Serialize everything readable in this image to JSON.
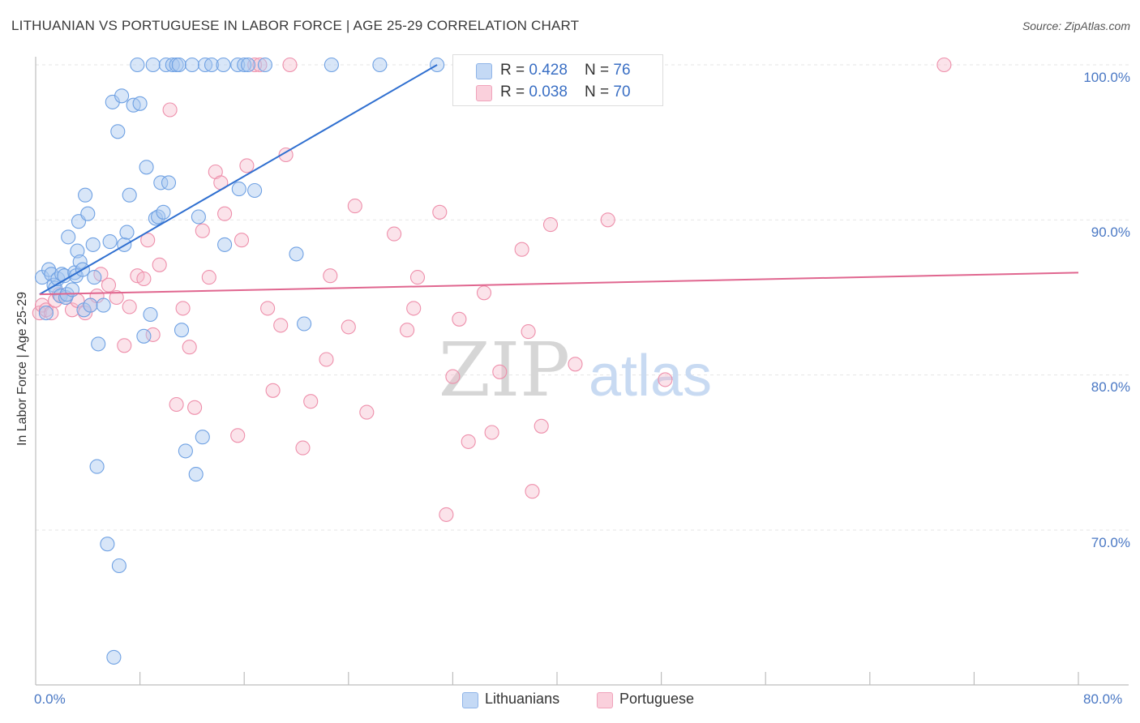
{
  "header": {
    "title": "LITHUANIAN VS PORTUGUESE IN LABOR FORCE | AGE 25-29 CORRELATION CHART",
    "source": "Source: ZipAtlas.com"
  },
  "watermark": {
    "zip": "ZIP",
    "atlas": "atlas"
  },
  "legend_top": {
    "rows": [
      {
        "r_label": "R = ",
        "r_value": "0.428",
        "n_label": "N = ",
        "n_value": "76",
        "color": "#a8c8f0"
      },
      {
        "r_label": "R = ",
        "r_value": "0.038",
        "n_label": "N = ",
        "n_value": "70",
        "color": "#f6b8cb"
      }
    ]
  },
  "legend_bottom": {
    "items": [
      {
        "label": "Lithuanians",
        "color": "#a8c8f0"
      },
      {
        "label": "Portuguese",
        "color": "#f6b8cb"
      }
    ]
  },
  "chart_data": {
    "type": "scatter",
    "title": "LITHUANIAN VS PORTUGUESE IN LABOR FORCE | AGE 25-29 CORRELATION CHART",
    "xlabel": "",
    "ylabel": "In Labor Force | Age 25-29",
    "xlim": [
      0,
      80
    ],
    "ylim": [
      61,
      102
    ],
    "x_tick_labels": [
      "0.0%",
      "80.0%"
    ],
    "y_ticks": [
      70,
      80,
      90,
      100
    ],
    "y_tick_labels": [
      "70.0%",
      "80.0%",
      "90.0%",
      "100.0%"
    ],
    "grid": true,
    "legend": "bottom-center",
    "series": [
      {
        "name": "Lithuanians",
        "color": "#6fa1e3",
        "r": 0.428,
        "n": 76,
        "trend": {
          "x": [
            0.3,
            30.8
          ],
          "y": [
            85.2,
            100.0
          ]
        },
        "points": [
          [
            0.5,
            86.3
          ],
          [
            0.8,
            84.0
          ],
          [
            1.0,
            86.8
          ],
          [
            1.2,
            86.5
          ],
          [
            1.4,
            85.8
          ],
          [
            1.5,
            85.6
          ],
          [
            1.7,
            86.2
          ],
          [
            1.9,
            85.1
          ],
          [
            2.0,
            86.5
          ],
          [
            2.2,
            86.4
          ],
          [
            2.3,
            85.0
          ],
          [
            2.4,
            85.2
          ],
          [
            2.5,
            88.9
          ],
          [
            2.8,
            85.5
          ],
          [
            3.0,
            86.6
          ],
          [
            3.1,
            86.4
          ],
          [
            3.2,
            88.0
          ],
          [
            3.3,
            89.9
          ],
          [
            3.4,
            87.3
          ],
          [
            3.6,
            86.8
          ],
          [
            3.7,
            84.2
          ],
          [
            3.8,
            91.6
          ],
          [
            4.0,
            90.4
          ],
          [
            4.2,
            84.5
          ],
          [
            4.4,
            88.4
          ],
          [
            4.5,
            86.3
          ],
          [
            4.7,
            74.1
          ],
          [
            4.8,
            82.0
          ],
          [
            5.2,
            84.5
          ],
          [
            5.5,
            69.1
          ],
          [
            5.7,
            88.6
          ],
          [
            5.9,
            97.6
          ],
          [
            6.0,
            61.8
          ],
          [
            6.3,
            95.7
          ],
          [
            6.4,
            67.7
          ],
          [
            6.6,
            98.0
          ],
          [
            6.8,
            88.4
          ],
          [
            7.0,
            89.2
          ],
          [
            7.2,
            91.6
          ],
          [
            7.5,
            97.4
          ],
          [
            7.8,
            100.0
          ],
          [
            8.0,
            97.5
          ],
          [
            8.3,
            82.5
          ],
          [
            8.5,
            93.4
          ],
          [
            8.8,
            83.9
          ],
          [
            9.0,
            100.0
          ],
          [
            9.2,
            90.1
          ],
          [
            9.4,
            90.2
          ],
          [
            9.6,
            92.4
          ],
          [
            9.8,
            90.5
          ],
          [
            10.0,
            100.0
          ],
          [
            10.2,
            92.4
          ],
          [
            10.5,
            100.0
          ],
          [
            10.8,
            100.0
          ],
          [
            11.0,
            100.0
          ],
          [
            11.2,
            82.9
          ],
          [
            11.5,
            75.1
          ],
          [
            12.0,
            100.0
          ],
          [
            12.3,
            73.6
          ],
          [
            12.5,
            90.2
          ],
          [
            12.8,
            76.0
          ],
          [
            13.0,
            100.0
          ],
          [
            13.5,
            100.0
          ],
          [
            14.4,
            100.0
          ],
          [
            14.5,
            88.4
          ],
          [
            15.5,
            100.0
          ],
          [
            15.6,
            92.0
          ],
          [
            16.0,
            100.0
          ],
          [
            16.3,
            100.0
          ],
          [
            16.8,
            91.9
          ],
          [
            17.6,
            100.0
          ],
          [
            20.0,
            87.8
          ],
          [
            20.6,
            83.3
          ],
          [
            22.7,
            100.0
          ],
          [
            26.4,
            100.0
          ],
          [
            30.8,
            100.0
          ]
        ]
      },
      {
        "name": "Portuguese",
        "color": "#ee8fab",
        "r": 0.038,
        "n": 70,
        "trend": {
          "x": [
            0.3,
            80.0
          ],
          "y": [
            85.2,
            86.6
          ]
        },
        "points": [
          [
            0.3,
            84.0
          ],
          [
            0.5,
            84.5
          ],
          [
            0.8,
            84.2
          ],
          [
            1.2,
            84.0
          ],
          [
            1.5,
            84.8
          ],
          [
            1.8,
            85.2
          ],
          [
            2.3,
            85.0
          ],
          [
            2.8,
            84.2
          ],
          [
            3.2,
            84.8
          ],
          [
            3.8,
            84.0
          ],
          [
            4.2,
            84.5
          ],
          [
            4.7,
            85.1
          ],
          [
            5.0,
            86.5
          ],
          [
            5.6,
            85.8
          ],
          [
            6.2,
            85.0
          ],
          [
            6.8,
            81.9
          ],
          [
            7.2,
            84.4
          ],
          [
            7.8,
            86.4
          ],
          [
            8.3,
            86.2
          ],
          [
            8.6,
            88.7
          ],
          [
            9.0,
            82.6
          ],
          [
            9.5,
            87.1
          ],
          [
            10.3,
            97.1
          ],
          [
            10.8,
            78.1
          ],
          [
            11.3,
            84.3
          ],
          [
            11.8,
            81.8
          ],
          [
            12.2,
            77.9
          ],
          [
            12.8,
            89.3
          ],
          [
            13.3,
            86.3
          ],
          [
            13.8,
            93.1
          ],
          [
            14.2,
            92.4
          ],
          [
            14.5,
            90.4
          ],
          [
            15.5,
            76.1
          ],
          [
            15.8,
            88.7
          ],
          [
            16.2,
            93.5
          ],
          [
            16.8,
            100.0
          ],
          [
            17.2,
            100.0
          ],
          [
            17.8,
            84.3
          ],
          [
            18.2,
            79.0
          ],
          [
            18.8,
            83.2
          ],
          [
            19.2,
            94.2
          ],
          [
            19.5,
            100.0
          ],
          [
            20.5,
            75.3
          ],
          [
            21.1,
            78.3
          ],
          [
            22.3,
            81.0
          ],
          [
            22.6,
            86.4
          ],
          [
            24.0,
            83.1
          ],
          [
            24.5,
            90.9
          ],
          [
            25.4,
            77.6
          ],
          [
            27.5,
            89.1
          ],
          [
            28.5,
            82.9
          ],
          [
            29.0,
            84.3
          ],
          [
            29.3,
            86.3
          ],
          [
            31.0,
            90.5
          ],
          [
            31.5,
            71.0
          ],
          [
            32.0,
            79.9
          ],
          [
            32.5,
            83.6
          ],
          [
            33.2,
            75.7
          ],
          [
            34.4,
            85.3
          ],
          [
            35.0,
            76.3
          ],
          [
            35.6,
            80.2
          ],
          [
            37.3,
            88.1
          ],
          [
            37.8,
            82.8
          ],
          [
            38.1,
            72.5
          ],
          [
            38.8,
            76.7
          ],
          [
            39.5,
            89.7
          ],
          [
            41.4,
            80.7
          ],
          [
            43.9,
            90.0
          ],
          [
            48.3,
            79.7
          ],
          [
            69.7,
            100.0
          ]
        ]
      }
    ]
  }
}
